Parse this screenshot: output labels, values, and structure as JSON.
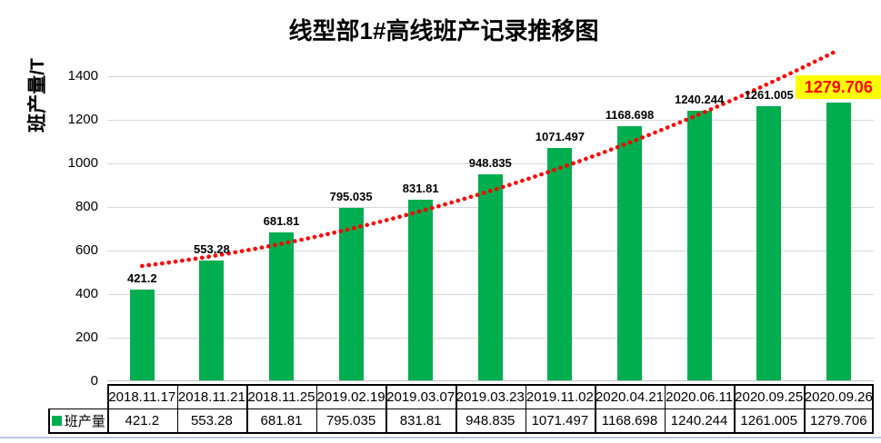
{
  "chart_data": {
    "type": "bar",
    "title": "线型部1#高线班产记录推移图",
    "ylabel": "班产量/T",
    "xlabel": "",
    "categories": [
      "2018.11.17",
      "2018.11.21",
      "2018.11.25",
      "2019.02.19",
      "2019.03.07",
      "2019.03.23",
      "2019.11.02",
      "2020.04.21",
      "2020.06.11",
      "2020.09.25",
      "2020.09.26"
    ],
    "series": [
      {
        "name": "班产量",
        "values": [
          421.2,
          553.28,
          681.81,
          795.035,
          831.81,
          948.835,
          1071.497,
          1168.698,
          1240.244,
          1261.005,
          1279.706
        ]
      }
    ],
    "ylim": [
      0,
      1400
    ],
    "yticks": [
      0,
      200,
      400,
      600,
      800,
      1000,
      1200,
      1400
    ],
    "grid": "horizontal-only",
    "legend_position": "bottom-left-of-data-table",
    "data_table_shown": true,
    "trendline": {
      "style": "dotted",
      "shape": "exponential",
      "color": "#ff0000"
    },
    "highlight_last_label": {
      "background": "#ffff00",
      "text_color": "#ff0000"
    },
    "colors": {
      "bar": "#00ad4f",
      "gridline": "#d6d6d6",
      "axis_line": "#bfbfbf",
      "table_border": "#000000",
      "label_text": "#000000",
      "bottom_rule": "#b9c7dd"
    }
  }
}
